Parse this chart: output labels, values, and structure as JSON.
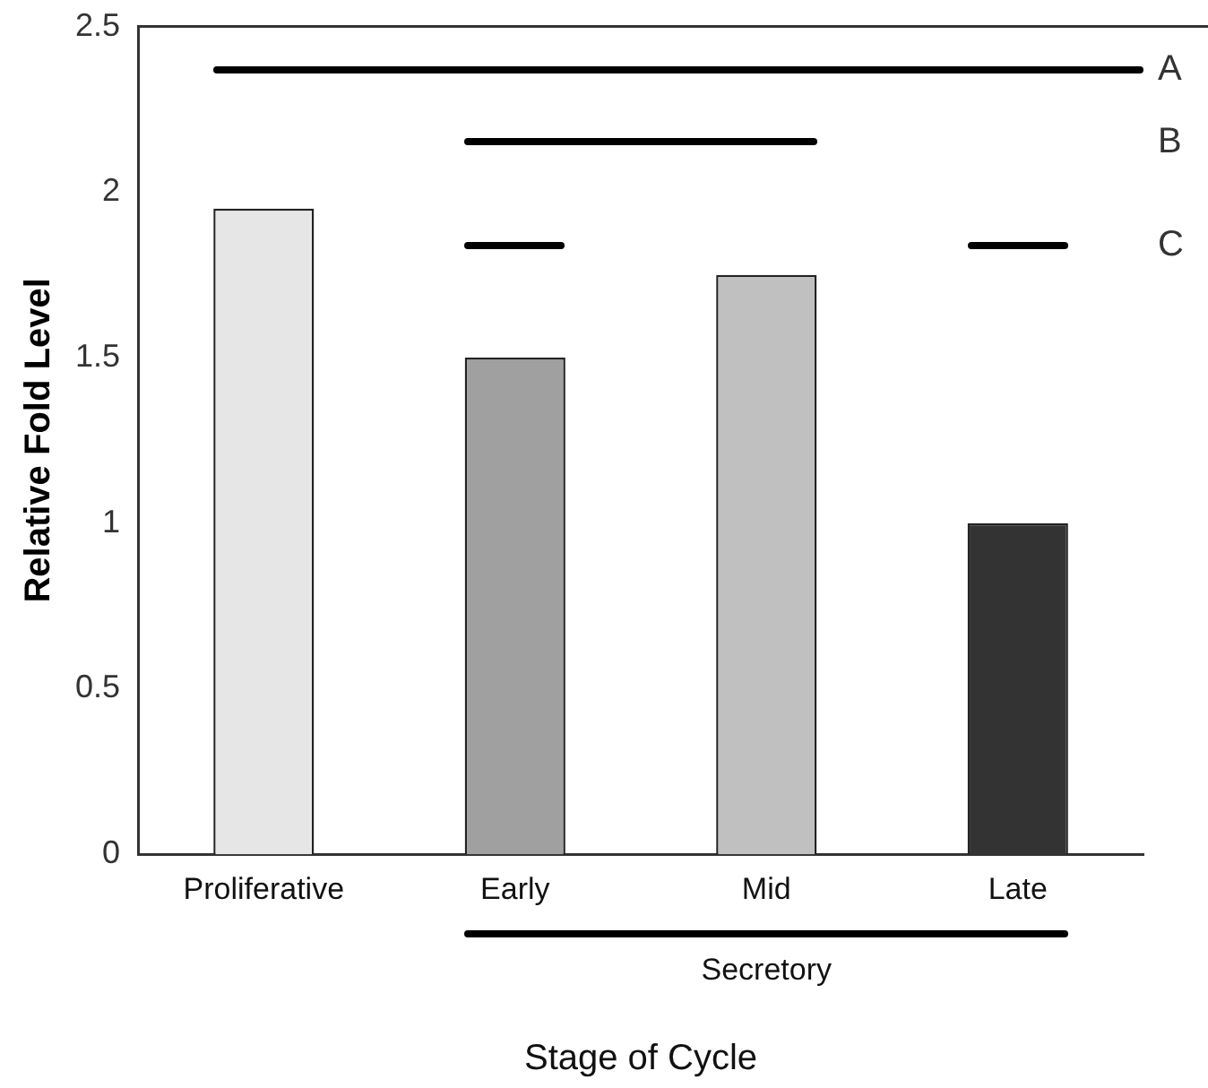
{
  "chart_data": {
    "type": "bar",
    "xlabel": "Stage of Cycle",
    "ylabel": "Relative Fold Level",
    "categories": [
      "Proliferative",
      "Early",
      "Mid",
      "Late"
    ],
    "values": [
      1.95,
      1.5,
      1.75,
      1.0
    ],
    "colors": [
      "#e6e6e6",
      "#a0a0a0",
      "#c0c0c0",
      "#333333"
    ],
    "ylim": [
      0,
      2.5
    ],
    "yticks": [
      0,
      0.5,
      1,
      1.5,
      2,
      2.5
    ],
    "grid": false,
    "legend": false,
    "annotations": [
      "A",
      "B",
      "C",
      "Secretory"
    ]
  }
}
